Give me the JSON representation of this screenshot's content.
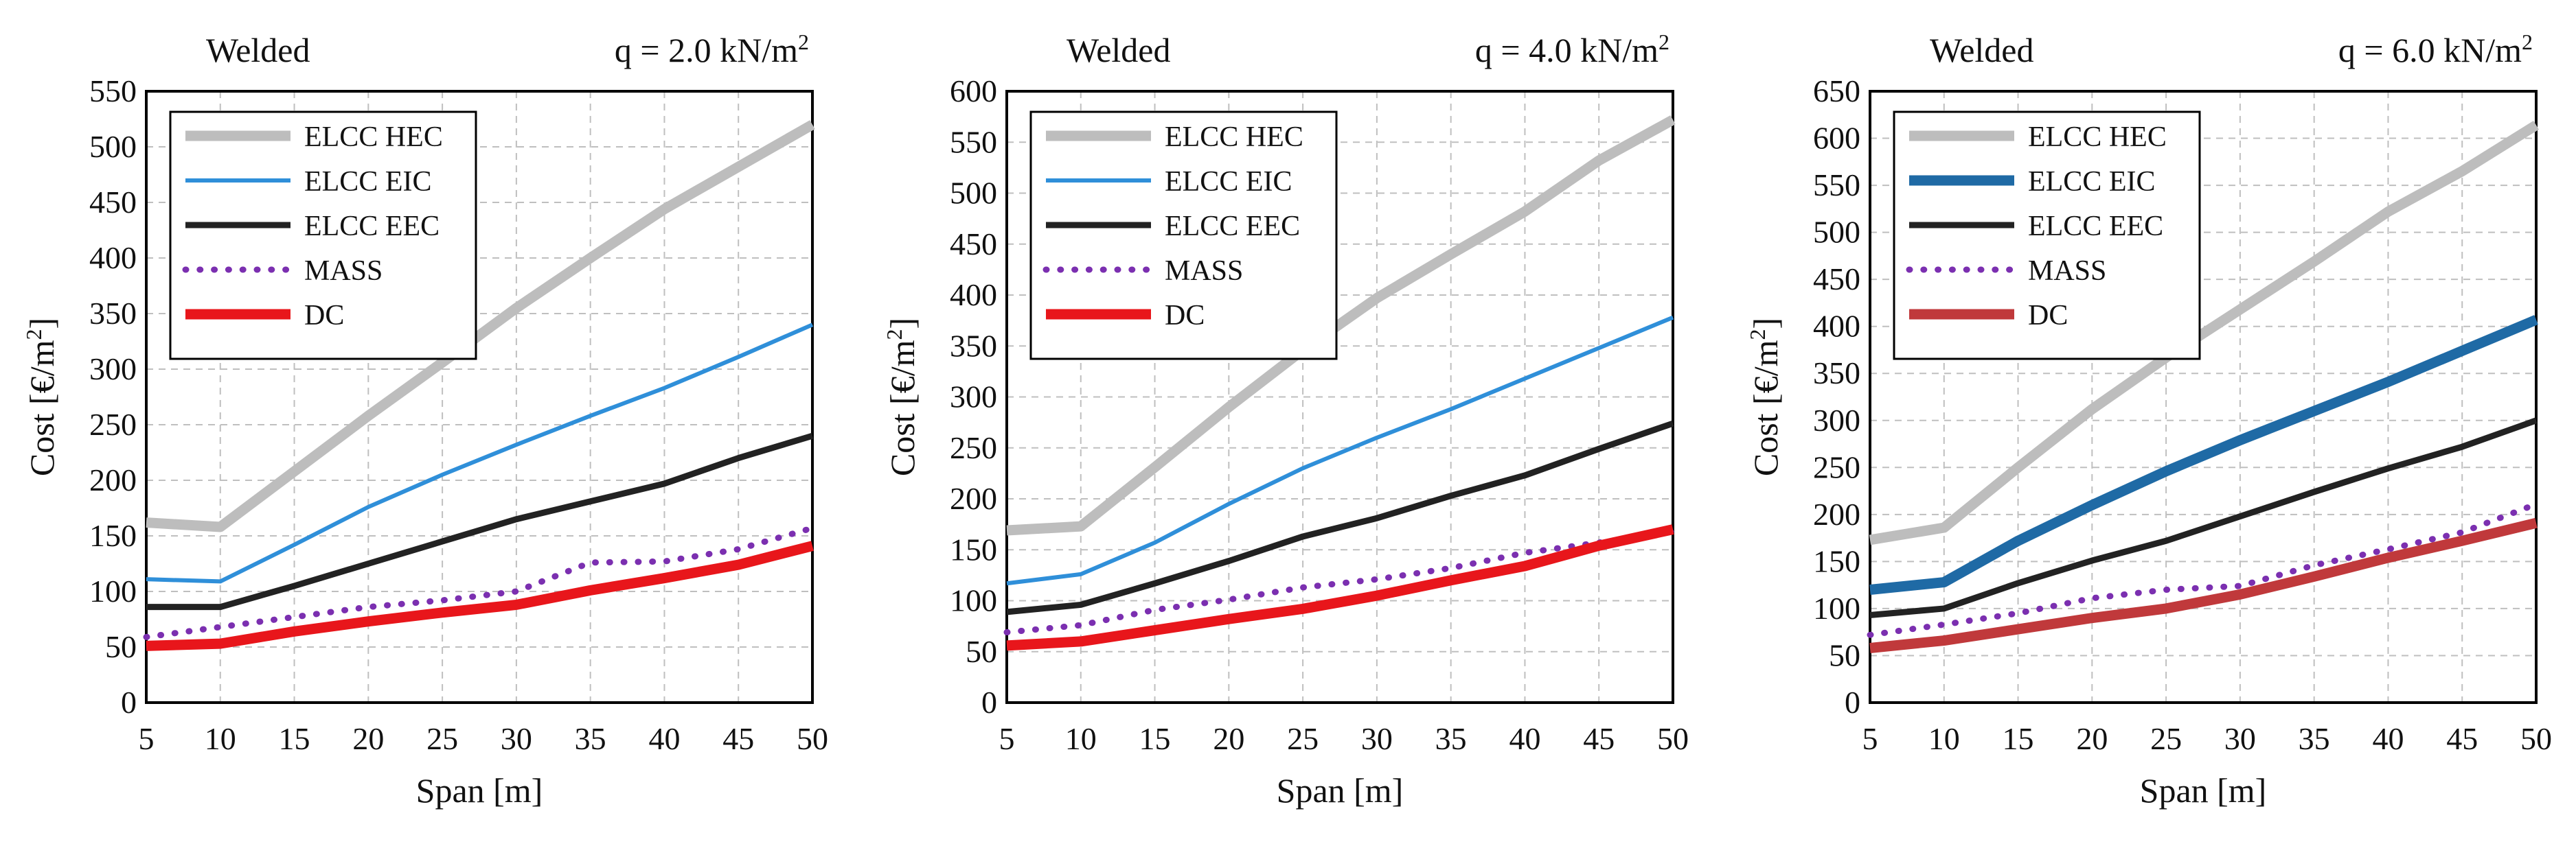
{
  "figure": {
    "panels": 3
  },
  "chart_data": [
    {
      "type": "line",
      "header_left": "Welded",
      "header_right_prefix": "q = 2.0 kN/m",
      "header_right_sup": "2",
      "xlabel": "Span [m]",
      "ylabel_prefix": "Cost [€/m",
      "ylabel_sup": "2",
      "ylabel_suffix": "]",
      "x": [
        5,
        10,
        15,
        20,
        25,
        30,
        35,
        40,
        45,
        50
      ],
      "xlim": [
        5,
        50
      ],
      "ylim": [
        0,
        550
      ],
      "yticks": [
        0,
        50,
        100,
        150,
        200,
        250,
        300,
        350,
        400,
        450,
        500,
        550
      ],
      "series": [
        {
          "name": "ELCC HEC",
          "color": "#bdbdbd",
          "dash": "solid",
          "weight": "thick",
          "values": [
            162,
            158,
            208,
            258,
            306,
            355,
            400,
            444,
            482,
            520
          ]
        },
        {
          "name": "ELCC EIC",
          "color": "#2f8fd9",
          "dash": "solid",
          "weight": "thin",
          "values": [
            111,
            109,
            142,
            176,
            205,
            232,
            258,
            283,
            311,
            340
          ]
        },
        {
          "name": "ELCC EEC",
          "color": "#222222",
          "dash": "solid",
          "weight": "medium",
          "values": [
            86,
            86,
            105,
            125,
            145,
            165,
            181,
            197,
            220,
            240
          ]
        },
        {
          "name": "MASS",
          "color": "#7b2fb0",
          "dash": "dotted",
          "weight": "medium",
          "values": [
            59,
            68,
            77,
            86,
            92,
            100,
            126,
            127,
            138,
            157
          ]
        },
        {
          "name": "DC",
          "color": "#e8161b",
          "dash": "solid",
          "weight": "thick",
          "values": [
            51,
            53,
            64,
            73,
            81,
            88,
            101,
            112,
            124,
            141
          ]
        }
      ]
    },
    {
      "type": "line",
      "header_left": "Welded",
      "header_right_prefix": "q = 4.0 kN/m",
      "header_right_sup": "2",
      "xlabel": "Span [m]",
      "ylabel_prefix": "Cost [€/m",
      "ylabel_sup": "2",
      "ylabel_suffix": "]",
      "x": [
        5,
        10,
        15,
        20,
        25,
        30,
        35,
        40,
        45,
        50
      ],
      "xlim": [
        5,
        50
      ],
      "ylim": [
        0,
        600
      ],
      "yticks": [
        0,
        50,
        100,
        150,
        200,
        250,
        300,
        350,
        400,
        450,
        500,
        550,
        600
      ],
      "series": [
        {
          "name": "ELCC HEC",
          "color": "#bdbdbd",
          "dash": "solid",
          "weight": "thick",
          "values": [
            169,
            173,
            231,
            290,
            346,
            397,
            440,
            482,
            532,
            572
          ]
        },
        {
          "name": "ELCC EIC",
          "color": "#2f8fd9",
          "dash": "solid",
          "weight": "thin",
          "values": [
            117,
            126,
            157,
            195,
            230,
            260,
            288,
            318,
            348,
            378
          ]
        },
        {
          "name": "ELCC EEC",
          "color": "#222222",
          "dash": "solid",
          "weight": "medium",
          "values": [
            89,
            96,
            117,
            139,
            163,
            181,
            203,
            223,
            249,
            274
          ]
        },
        {
          "name": "MASS",
          "color": "#7b2fb0",
          "dash": "dotted",
          "weight": "medium",
          "values": [
            69,
            76,
            91,
            101,
            113,
            121,
            132,
            147,
            157,
            168
          ]
        },
        {
          "name": "DC",
          "color": "#e8161b",
          "dash": "solid",
          "weight": "thick",
          "values": [
            56,
            60,
            71,
            82,
            92,
            105,
            120,
            134,
            154,
            170
          ]
        }
      ]
    },
    {
      "type": "line",
      "header_left": "Welded",
      "header_right_prefix": "q = 6.0 kN/m",
      "header_right_sup": "2",
      "xlabel": "Span [m]",
      "ylabel_prefix": "Cost [€/m",
      "ylabel_sup": "2",
      "ylabel_suffix": "]",
      "x": [
        5,
        10,
        15,
        20,
        25,
        30,
        35,
        40,
        45,
        50
      ],
      "xlim": [
        5,
        50
      ],
      "ylim": [
        0,
        650
      ],
      "yticks": [
        0,
        50,
        100,
        150,
        200,
        250,
        300,
        350,
        400,
        450,
        500,
        550,
        600,
        650
      ],
      "series": [
        {
          "name": "ELCC HEC",
          "color": "#bdbdbd",
          "dash": "solid",
          "weight": "thick",
          "values": [
            173,
            186,
            250,
            312,
            367,
            418,
            469,
            522,
            565,
            614
          ]
        },
        {
          "name": "ELCC EIC",
          "color": "#1f6aa5",
          "dash": "solid",
          "weight": "thick",
          "values": [
            120,
            128,
            172,
            210,
            246,
            279,
            310,
            341,
            374,
            407
          ]
        },
        {
          "name": "ELCC EEC",
          "color": "#222222",
          "dash": "solid",
          "weight": "medium",
          "values": [
            93,
            100,
            127,
            151,
            172,
            198,
            224,
            249,
            272,
            300
          ]
        },
        {
          "name": "MASS",
          "color": "#7b2fb0",
          "dash": "dotted",
          "weight": "medium",
          "values": [
            72,
            83,
            95,
            111,
            120,
            124,
            146,
            163,
            181,
            211
          ]
        },
        {
          "name": "DC",
          "color": "#c0393b",
          "dash": "solid",
          "weight": "thick",
          "values": [
            58,
            66,
            78,
            90,
            100,
            115,
            134,
            154,
            172,
            191
          ]
        }
      ]
    }
  ]
}
